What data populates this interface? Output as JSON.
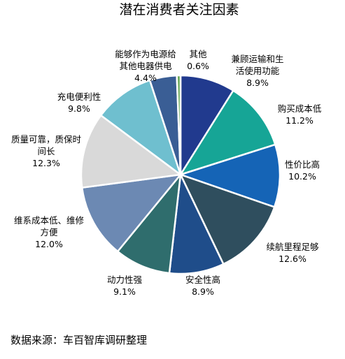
{
  "chart_data": {
    "type": "pie",
    "title": "潜在消费者关注因素",
    "source": "数据来源：车百智库调研整理",
    "colors": {
      "c1": "#213a8e",
      "c2": "#16a596",
      "c3": "#1564b6",
      "c4": "#2f4e5e",
      "c5": "#1f4d8a",
      "c6": "#2f6d6d",
      "c7": "#6c89b3",
      "c8": "#d9d9d9",
      "c9": "#6fbfcf",
      "c10": "#3a5e95",
      "c11": "#6aaa57"
    },
    "slices": [
      {
        "name_lines": [
          "兼顾运输和生",
          "活使用功能"
        ],
        "value_label": "8.9%",
        "value": 8.9,
        "color": "c1"
      },
      {
        "name_lines": [
          "购买成本低"
        ],
        "value_label": "11.2%",
        "value": 11.2,
        "color": "c2"
      },
      {
        "name_lines": [
          "性价比高"
        ],
        "value_label": "10.2%",
        "value": 10.2,
        "color": "c3"
      },
      {
        "name_lines": [
          "续航里程足够"
        ],
        "value_label": "12.6%",
        "value": 12.6,
        "color": "c4"
      },
      {
        "name_lines": [
          "安全性高"
        ],
        "value_label": "8.9%",
        "value": 8.9,
        "color": "c5"
      },
      {
        "name_lines": [
          "动力性强"
        ],
        "value_label": "9.1%",
        "value": 9.1,
        "color": "c6"
      },
      {
        "name_lines": [
          "维系成本低、维修",
          "方便"
        ],
        "value_label": "12.0%",
        "value": 12.0,
        "color": "c7"
      },
      {
        "name_lines": [
          "质量可靠，质保时",
          "间长"
        ],
        "value_label": "12.3%",
        "value": 12.3,
        "color": "c8"
      },
      {
        "name_lines": [
          "充电便利性"
        ],
        "value_label": "9.8%",
        "value": 9.8,
        "color": "c9"
      },
      {
        "name_lines": [
          "能够作为电源给",
          "其他电器供电"
        ],
        "value_label": "4.4%",
        "value": 4.4,
        "color": "c10"
      },
      {
        "name_lines": [
          "其他"
        ],
        "value_label": "0.6%",
        "value": 0.6,
        "color": "c11"
      }
    ]
  }
}
